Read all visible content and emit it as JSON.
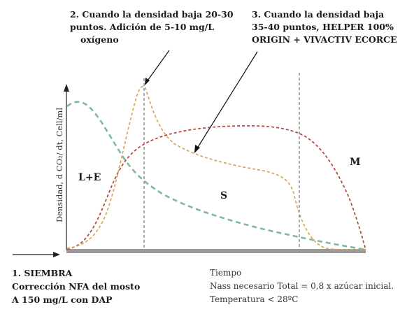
{
  "annotations": {
    "step1": [
      "1. SIEMBRA",
      "Corrección NFA del mosto",
      "A 150 mg/L  con DAP"
    ],
    "step2": [
      "2. Cuando la densidad baja 20-30",
      "puntos. Adición de 5-10 mg/L",
      "oxígeno"
    ],
    "step3": [
      "3. Cuando la densidad baja",
      "35-40 puntos, HELPER 100%",
      "ORIGIN + VIVACTIV ECORCE"
    ]
  },
  "y_axis_label": "Densidad, d CO₂/ dt, Cell/ml",
  "phases": {
    "le": "L+E",
    "s": "S",
    "m": "M"
  },
  "info": [
    "Tiempo",
    "Nass necesario Total = 0,8 x azúcar inicial.",
    "Temperatura < 28ºC"
  ],
  "colors": {
    "green_curve": "#7fb8a2",
    "orange_curve": "#d9a55b",
    "red_curve": "#b5443a",
    "baseline": "#9a9a9a"
  }
}
